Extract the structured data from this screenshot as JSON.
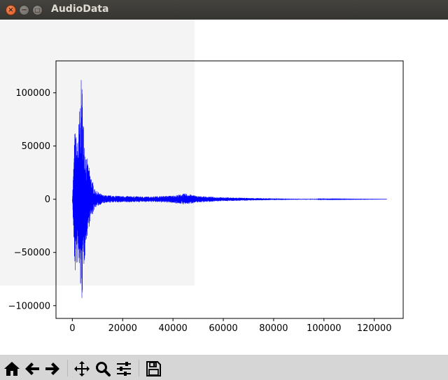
{
  "window": {
    "title": "AudioData"
  },
  "icons": {
    "close": "close-icon",
    "minimize": "minimize-icon",
    "maximize": "maximize-icon"
  },
  "toolbar": {
    "buttons": [
      {
        "name": "home-icon"
      },
      {
        "name": "back-arrow-icon"
      },
      {
        "name": "forward-arrow-icon"
      },
      {
        "name": "pan-move-icon"
      },
      {
        "name": "zoom-magnifier-icon"
      },
      {
        "name": "configure-subplots-icon"
      },
      {
        "name": "save-disk-icon"
      }
    ]
  },
  "chart_data": {
    "type": "line",
    "title": "",
    "xlabel": "",
    "ylabel": "",
    "xlim": [
      -6500,
      131500
    ],
    "ylim": [
      -112000,
      130000
    ],
    "xticks": [
      0,
      20000,
      40000,
      60000,
      80000,
      100000,
      120000
    ],
    "xtick_labels": [
      "0",
      "20000",
      "40000",
      "60000",
      "80000",
      "100000",
      "120000"
    ],
    "yticks": [
      -100000,
      -50000,
      0,
      50000,
      100000
    ],
    "ytick_labels": [
      "−100000",
      "−50000",
      "0",
      "50000",
      "100000"
    ],
    "series_color": "#0000ff",
    "envelope": {
      "x": [
        0,
        1000,
        2000,
        3000,
        3700,
        4500,
        5500,
        7000,
        9000,
        12000,
        16000,
        22000,
        30000,
        40000,
        45000,
        50000,
        60000,
        70000,
        80000,
        90000,
        100000,
        110000,
        125000
      ],
      "max": [
        0,
        67000,
        55000,
        90000,
        120000,
        72000,
        42000,
        26000,
        9000,
        4000,
        3500,
        3000,
        2500,
        3500,
        5500,
        3000,
        1800,
        1200,
        800,
        400,
        250,
        150,
        50
      ],
      "min": [
        0,
        -73000,
        -60000,
        -78000,
        -102000,
        -68000,
        -40000,
        -22000,
        -8000,
        -4000,
        -3000,
        -3000,
        -2500,
        -3500,
        -5000,
        -3000,
        -1800,
        -1200,
        -800,
        -400,
        -250,
        -150,
        -50
      ]
    },
    "grid": false,
    "legend": "none"
  }
}
